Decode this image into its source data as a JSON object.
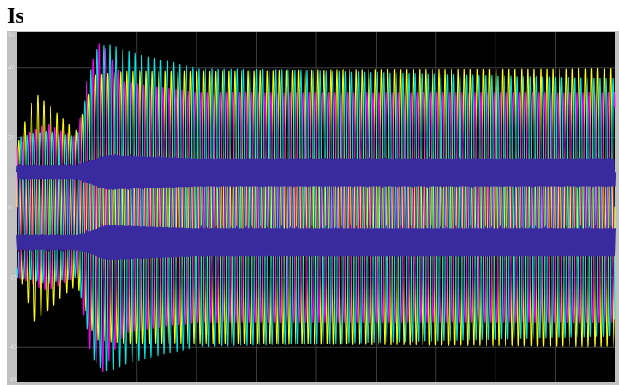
{
  "window": {
    "title": "Is"
  },
  "colors": {
    "background": "#000000",
    "frame": "#c0c0c0",
    "grid": "#4a4a4a",
    "axis_text": "#e6e6e6"
  },
  "chart_data": {
    "type": "line",
    "title": "Is",
    "xlabel": "",
    "ylabel": "",
    "xlim": [
      0,
      10
    ],
    "ylim": [
      -50,
      50
    ],
    "grid": true,
    "yticks": [
      "50",
      "40",
      "20",
      "0",
      "-20",
      "-40",
      "-50"
    ],
    "series": [
      {
        "color": "#ffff00",
        "frequency_cycles_per_unit": 9.4,
        "phase_deg": 0,
        "envelope": [
          [
            0,
            18
          ],
          [
            0.3,
            33
          ],
          [
            0.8,
            25
          ],
          [
            1.0,
            22
          ],
          [
            1.3,
            38
          ],
          [
            1.8,
            39
          ],
          [
            3,
            39
          ],
          [
            10,
            40
          ]
        ]
      },
      {
        "color": "#ff00ff",
        "frequency_cycles_per_unit": 9.4,
        "phase_deg": 120,
        "envelope": [
          [
            0,
            20
          ],
          [
            0.5,
            24
          ],
          [
            1.0,
            20
          ],
          [
            1.2,
            40
          ],
          [
            1.4,
            48
          ],
          [
            1.8,
            36
          ],
          [
            3,
            33
          ],
          [
            10,
            33
          ]
        ]
      },
      {
        "color": "#00e5e5",
        "frequency_cycles_per_unit": 9.4,
        "phase_deg": 240,
        "envelope": [
          [
            0,
            20
          ],
          [
            0.5,
            22
          ],
          [
            1.0,
            20
          ],
          [
            1.3,
            45
          ],
          [
            1.5,
            47
          ],
          [
            2,
            44
          ],
          [
            3,
            40
          ],
          [
            10,
            37
          ]
        ]
      },
      {
        "color": "#3a2aa0",
        "frequency_cycles_per_unit": 28,
        "phase_deg": 0,
        "offset": 10,
        "envelope": [
          [
            0,
            2
          ],
          [
            1,
            2
          ],
          [
            1.5,
            5
          ],
          [
            3,
            4
          ],
          [
            10,
            4
          ]
        ]
      },
      {
        "color": "#3a2aa0",
        "frequency_cycles_per_unit": 28,
        "phase_deg": 90,
        "offset": -10,
        "envelope": [
          [
            0,
            2
          ],
          [
            1,
            2
          ],
          [
            1.5,
            5
          ],
          [
            3,
            4
          ],
          [
            10,
            4
          ]
        ]
      }
    ]
  }
}
